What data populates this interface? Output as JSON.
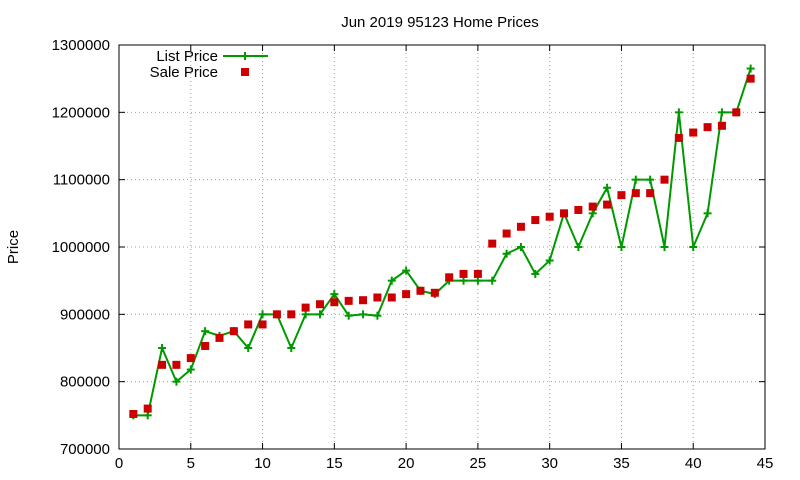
{
  "chart_data": {
    "type": "line",
    "title": "Jun 2019 95123 Home Prices",
    "xlabel": "",
    "ylabel": "Price",
    "xlim": [
      0,
      45
    ],
    "ylim": [
      700000,
      1300000
    ],
    "xticks": [
      "0",
      "5",
      "10",
      "15",
      "20",
      "25",
      "30",
      "35",
      "40",
      "45"
    ],
    "yticks": [
      "700000",
      "800000",
      "900000",
      "1000000",
      "1100000",
      "1200000",
      "1300000"
    ],
    "grid": true,
    "legend_position": "top-left",
    "x": [
      1,
      2,
      3,
      4,
      5,
      6,
      7,
      8,
      9,
      10,
      11,
      12,
      13,
      14,
      15,
      16,
      17,
      18,
      19,
      20,
      21,
      22,
      23,
      24,
      25,
      26,
      27,
      28,
      29,
      30,
      31,
      32,
      33,
      34,
      35,
      36,
      37,
      38,
      39,
      40,
      41,
      42,
      43,
      44
    ],
    "series": [
      {
        "name": "List Price",
        "style": "line+cross",
        "color": "#009900",
        "values": [
          750000,
          750000,
          850000,
          800000,
          818000,
          875000,
          868000,
          875000,
          850000,
          900000,
          900000,
          850000,
          900000,
          900000,
          930000,
          898000,
          900000,
          898000,
          950000,
          965000,
          935000,
          930000,
          950000,
          950000,
          950000,
          950000,
          990000,
          1000000,
          960000,
          980000,
          1050000,
          1000000,
          1050000,
          1088000,
          1000000,
          1100000,
          1100000,
          1000000,
          1200000,
          1000000,
          1050000,
          1200000,
          1200000,
          1265000
        ]
      },
      {
        "name": "Sale Price",
        "style": "square",
        "color": "#cc0000",
        "values": [
          752000,
          760000,
          825000,
          825000,
          835000,
          853000,
          865000,
          875000,
          885000,
          885000,
          900000,
          900000,
          910000,
          915000,
          918000,
          920000,
          921000,
          925000,
          925000,
          930000,
          935000,
          932000,
          955000,
          960000,
          960000,
          1005000,
          1020000,
          1030000,
          1040000,
          1045000,
          1050000,
          1055000,
          1060000,
          1063000,
          1077000,
          1080000,
          1080000,
          1100000,
          1162000,
          1170000,
          1178000,
          1180000,
          1200000,
          1250000
        ]
      }
    ]
  }
}
